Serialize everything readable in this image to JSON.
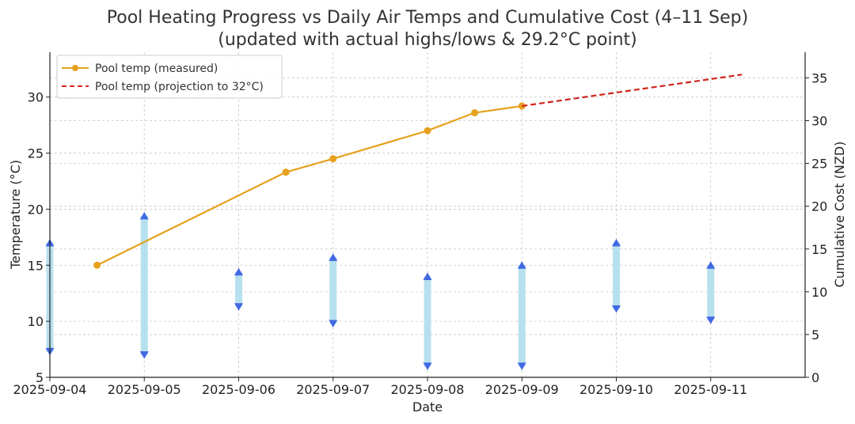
{
  "chart_data": {
    "type": "line",
    "title": "Pool Heating Progress vs Daily Air Temps and Cumulative Cost (4–11 Sep)",
    "subtitle": "(updated with actual highs/lows & 29.2°C point)",
    "xlabel": "Date",
    "ylabel": "Temperature (°C)",
    "y2label": "Cumulative Cost (NZD)",
    "xlim": [
      0,
      8.0
    ],
    "ylim": [
      5,
      34
    ],
    "y2lim": [
      0,
      38
    ],
    "grid": true,
    "legend_position": "top-left",
    "colors": {
      "measured": "#e6a11e",
      "projection": "#d0241b",
      "range_bar": "#b7e0ee",
      "marker": "#4169e1",
      "y2": "#1c7a1c",
      "axis": "#222222"
    },
    "x_ticks": [
      {
        "x": 0,
        "label": "2025-09-04"
      },
      {
        "x": 1,
        "label": "2025-09-05"
      },
      {
        "x": 2,
        "label": "2025-09-06"
      },
      {
        "x": 3,
        "label": "2025-09-07"
      },
      {
        "x": 4,
        "label": "2025-09-08"
      },
      {
        "x": 5,
        "label": "2025-09-09"
      },
      {
        "x": 6,
        "label": "2025-09-10"
      },
      {
        "x": 7,
        "label": "2025-09-11"
      }
    ],
    "y_ticks": [
      5,
      10,
      15,
      20,
      25,
      30
    ],
    "y2_ticks": [
      0,
      5,
      10,
      15,
      20,
      25,
      30,
      35
    ],
    "series": [
      {
        "name": "Pool temp (measured)",
        "style": "solid-marker",
        "points": [
          {
            "x": 0.5,
            "y": 15.0
          },
          {
            "x": 2.5,
            "y": 23.3
          },
          {
            "x": 3.0,
            "y": 24.5
          },
          {
            "x": 4.0,
            "y": 27.0
          },
          {
            "x": 4.5,
            "y": 28.6
          },
          {
            "x": 5.0,
            "y": 29.2
          }
        ]
      },
      {
        "name": "Pool temp (projection to 32°C)",
        "style": "dashed",
        "points": [
          {
            "x": 5.0,
            "y": 29.2
          },
          {
            "x": 7.33,
            "y": 32.0
          }
        ]
      }
    ],
    "daily_air_temps": [
      {
        "date": "2025-09-04",
        "x": 0,
        "high": 17.0,
        "low": 7.3
      },
      {
        "date": "2025-09-05",
        "x": 1,
        "high": 19.4,
        "low": 7.0
      },
      {
        "date": "2025-09-06",
        "x": 2,
        "high": 14.4,
        "low": 11.3
      },
      {
        "date": "2025-09-07",
        "x": 3,
        "high": 15.7,
        "low": 9.8
      },
      {
        "date": "2025-09-08",
        "x": 4,
        "high": 14.0,
        "low": 6.0
      },
      {
        "date": "2025-09-09",
        "x": 5,
        "high": 15.0,
        "low": 6.0
      },
      {
        "date": "2025-09-10",
        "x": 6,
        "high": 17.0,
        "low": 11.1
      },
      {
        "date": "2025-09-11",
        "x": 7,
        "high": 15.0,
        "low": 10.1
      }
    ]
  }
}
